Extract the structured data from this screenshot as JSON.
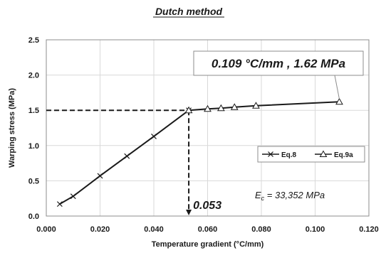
{
  "chart_data": {
    "type": "line",
    "title": "Dutch method",
    "xlabel": "Temperature gradient (°C/mm)",
    "ylabel": "Warping stress (MPa)",
    "xlim": [
      0.0,
      0.12
    ],
    "ylim": [
      0.0,
      2.5
    ],
    "x_ticks": [
      0.0,
      0.02,
      0.04,
      0.06,
      0.08,
      0.1,
      0.12
    ],
    "x_tick_labels": [
      "0.000",
      "0.020",
      "0.040",
      "0.060",
      "0.080",
      "0.100",
      "0.120"
    ],
    "y_ticks": [
      0.0,
      0.5,
      1.0,
      1.5,
      2.0,
      2.5
    ],
    "y_tick_labels": [
      "0.0",
      "0.5",
      "1.0",
      "1.5",
      "2.0",
      "2.5"
    ],
    "grid": "both",
    "legend_position": "right",
    "series": [
      {
        "name": "Eq.8",
        "marker": "x",
        "x": [
          0.005,
          0.01,
          0.02,
          0.03,
          0.04,
          0.053
        ],
        "y": [
          0.17,
          0.28,
          0.57,
          0.85,
          1.13,
          1.5
        ]
      },
      {
        "name": "Eq.9a",
        "marker": "triangle",
        "x": [
          0.053,
          0.06,
          0.065,
          0.07,
          0.078,
          0.109
        ],
        "y": [
          1.5,
          1.52,
          1.53,
          1.545,
          1.565,
          1.62
        ]
      }
    ],
    "annotations": {
      "callout": "0.109 °C/mm , 1.62 MPa",
      "callout_point": [
        0.109,
        1.62
      ],
      "threshold_label": "0.053",
      "threshold": [
        0.053,
        1.5
      ],
      "ec_prefix": "E",
      "ec_subscript": "c",
      "ec_value": " = 33,352 MPa"
    }
  }
}
